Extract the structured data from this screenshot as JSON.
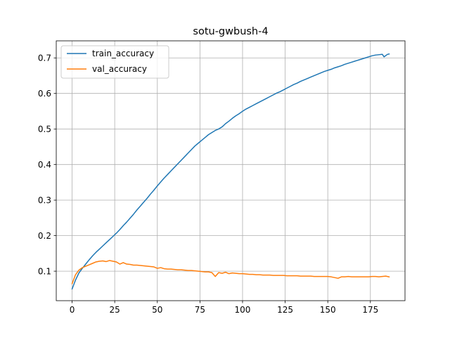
{
  "chart_data": {
    "type": "line",
    "title": "sotu-gwbush-4",
    "xlabel": "",
    "ylabel": "",
    "xlim": [
      -9.3,
      195.3
    ],
    "ylim": [
      0.017,
      0.748
    ],
    "xticks": [
      0,
      25,
      50,
      75,
      100,
      125,
      150,
      175
    ],
    "yticks": [
      0.1,
      0.2,
      0.3,
      0.4,
      0.5,
      0.6,
      0.7
    ],
    "grid": true,
    "legend_position": "top-left",
    "series": [
      {
        "name": "train_accuracy",
        "color": "#1f77b4",
        "points": [
          [
            0,
            0.05
          ],
          [
            2,
            0.075
          ],
          [
            4,
            0.095
          ],
          [
            6,
            0.108
          ],
          [
            8,
            0.12
          ],
          [
            10,
            0.132
          ],
          [
            12,
            0.143
          ],
          [
            14,
            0.153
          ],
          [
            16,
            0.162
          ],
          [
            18,
            0.171
          ],
          [
            20,
            0.18
          ],
          [
            22,
            0.189
          ],
          [
            24,
            0.198
          ],
          [
            26,
            0.207
          ],
          [
            28,
            0.217
          ],
          [
            30,
            0.228
          ],
          [
            32,
            0.238
          ],
          [
            34,
            0.249
          ],
          [
            36,
            0.26
          ],
          [
            38,
            0.272
          ],
          [
            40,
            0.283
          ],
          [
            42,
            0.294
          ],
          [
            44,
            0.305
          ],
          [
            46,
            0.317
          ],
          [
            48,
            0.328
          ],
          [
            50,
            0.34
          ],
          [
            52,
            0.351
          ],
          [
            54,
            0.362
          ],
          [
            56,
            0.372
          ],
          [
            58,
            0.382
          ],
          [
            60,
            0.392
          ],
          [
            62,
            0.402
          ],
          [
            64,
            0.412
          ],
          [
            66,
            0.422
          ],
          [
            68,
            0.432
          ],
          [
            70,
            0.442
          ],
          [
            72,
            0.452
          ],
          [
            74,
            0.46
          ],
          [
            76,
            0.468
          ],
          [
            78,
            0.476
          ],
          [
            80,
            0.484
          ],
          [
            82,
            0.49
          ],
          [
            84,
            0.496
          ],
          [
            86,
            0.5
          ],
          [
            88,
            0.506
          ],
          [
            90,
            0.515
          ],
          [
            92,
            0.522
          ],
          [
            94,
            0.53
          ],
          [
            96,
            0.537
          ],
          [
            98,
            0.543
          ],
          [
            100,
            0.55
          ],
          [
            102,
            0.556
          ],
          [
            104,
            0.561
          ],
          [
            106,
            0.566
          ],
          [
            108,
            0.571
          ],
          [
            110,
            0.576
          ],
          [
            112,
            0.581
          ],
          [
            114,
            0.586
          ],
          [
            116,
            0.591
          ],
          [
            118,
            0.596
          ],
          [
            120,
            0.601
          ],
          [
            122,
            0.605
          ],
          [
            124,
            0.61
          ],
          [
            126,
            0.615
          ],
          [
            128,
            0.62
          ],
          [
            130,
            0.625
          ],
          [
            132,
            0.629
          ],
          [
            134,
            0.634
          ],
          [
            136,
            0.638
          ],
          [
            138,
            0.642
          ],
          [
            140,
            0.646
          ],
          [
            142,
            0.65
          ],
          [
            144,
            0.654
          ],
          [
            146,
            0.658
          ],
          [
            148,
            0.662
          ],
          [
            150,
            0.665
          ],
          [
            152,
            0.668
          ],
          [
            154,
            0.672
          ],
          [
            156,
            0.675
          ],
          [
            158,
            0.678
          ],
          [
            160,
            0.682
          ],
          [
            162,
            0.685
          ],
          [
            164,
            0.688
          ],
          [
            166,
            0.691
          ],
          [
            168,
            0.694
          ],
          [
            170,
            0.697
          ],
          [
            172,
            0.7
          ],
          [
            174,
            0.703
          ],
          [
            176,
            0.706
          ],
          [
            178,
            0.708
          ],
          [
            180,
            0.709
          ],
          [
            182,
            0.71
          ],
          [
            183,
            0.703
          ],
          [
            185,
            0.71
          ],
          [
            186,
            0.711
          ]
        ]
      },
      {
        "name": "val_accuracy",
        "color": "#ff7f0e",
        "points": [
          [
            0,
            0.065
          ],
          [
            2,
            0.09
          ],
          [
            4,
            0.103
          ],
          [
            6,
            0.11
          ],
          [
            8,
            0.114
          ],
          [
            10,
            0.118
          ],
          [
            12,
            0.122
          ],
          [
            14,
            0.126
          ],
          [
            16,
            0.128
          ],
          [
            18,
            0.129
          ],
          [
            20,
            0.127
          ],
          [
            22,
            0.13
          ],
          [
            24,
            0.128
          ],
          [
            26,
            0.126
          ],
          [
            28,
            0.12
          ],
          [
            30,
            0.124
          ],
          [
            32,
            0.12
          ],
          [
            34,
            0.119
          ],
          [
            36,
            0.117
          ],
          [
            38,
            0.117
          ],
          [
            40,
            0.116
          ],
          [
            42,
            0.115
          ],
          [
            44,
            0.114
          ],
          [
            46,
            0.113
          ],
          [
            48,
            0.112
          ],
          [
            50,
            0.108
          ],
          [
            52,
            0.11
          ],
          [
            54,
            0.107
          ],
          [
            56,
            0.106
          ],
          [
            58,
            0.106
          ],
          [
            60,
            0.105
          ],
          [
            62,
            0.104
          ],
          [
            64,
            0.104
          ],
          [
            66,
            0.103
          ],
          [
            68,
            0.102
          ],
          [
            70,
            0.102
          ],
          [
            72,
            0.101
          ],
          [
            74,
            0.1
          ],
          [
            76,
            0.099
          ],
          [
            78,
            0.098
          ],
          [
            80,
            0.098
          ],
          [
            82,
            0.096
          ],
          [
            84,
            0.085
          ],
          [
            86,
            0.096
          ],
          [
            88,
            0.094
          ],
          [
            90,
            0.097
          ],
          [
            92,
            0.093
          ],
          [
            94,
            0.095
          ],
          [
            96,
            0.094
          ],
          [
            98,
            0.093
          ],
          [
            100,
            0.093
          ],
          [
            102,
            0.092
          ],
          [
            104,
            0.091
          ],
          [
            106,
            0.091
          ],
          [
            108,
            0.09
          ],
          [
            110,
            0.09
          ],
          [
            112,
            0.089
          ],
          [
            114,
            0.089
          ],
          [
            116,
            0.089
          ],
          [
            118,
            0.088
          ],
          [
            120,
            0.088
          ],
          [
            122,
            0.088
          ],
          [
            124,
            0.088
          ],
          [
            126,
            0.087
          ],
          [
            128,
            0.087
          ],
          [
            130,
            0.087
          ],
          [
            132,
            0.087
          ],
          [
            134,
            0.086
          ],
          [
            136,
            0.086
          ],
          [
            138,
            0.086
          ],
          [
            140,
            0.086
          ],
          [
            142,
            0.085
          ],
          [
            144,
            0.085
          ],
          [
            146,
            0.085
          ],
          [
            148,
            0.085
          ],
          [
            150,
            0.085
          ],
          [
            152,
            0.084
          ],
          [
            154,
            0.082
          ],
          [
            156,
            0.08
          ],
          [
            158,
            0.084
          ],
          [
            160,
            0.084
          ],
          [
            162,
            0.085
          ],
          [
            164,
            0.084
          ],
          [
            166,
            0.084
          ],
          [
            168,
            0.084
          ],
          [
            170,
            0.084
          ],
          [
            172,
            0.084
          ],
          [
            174,
            0.084
          ],
          [
            176,
            0.085
          ],
          [
            178,
            0.085
          ],
          [
            180,
            0.084
          ],
          [
            182,
            0.085
          ],
          [
            184,
            0.086
          ],
          [
            186,
            0.084
          ]
        ]
      }
    ]
  }
}
